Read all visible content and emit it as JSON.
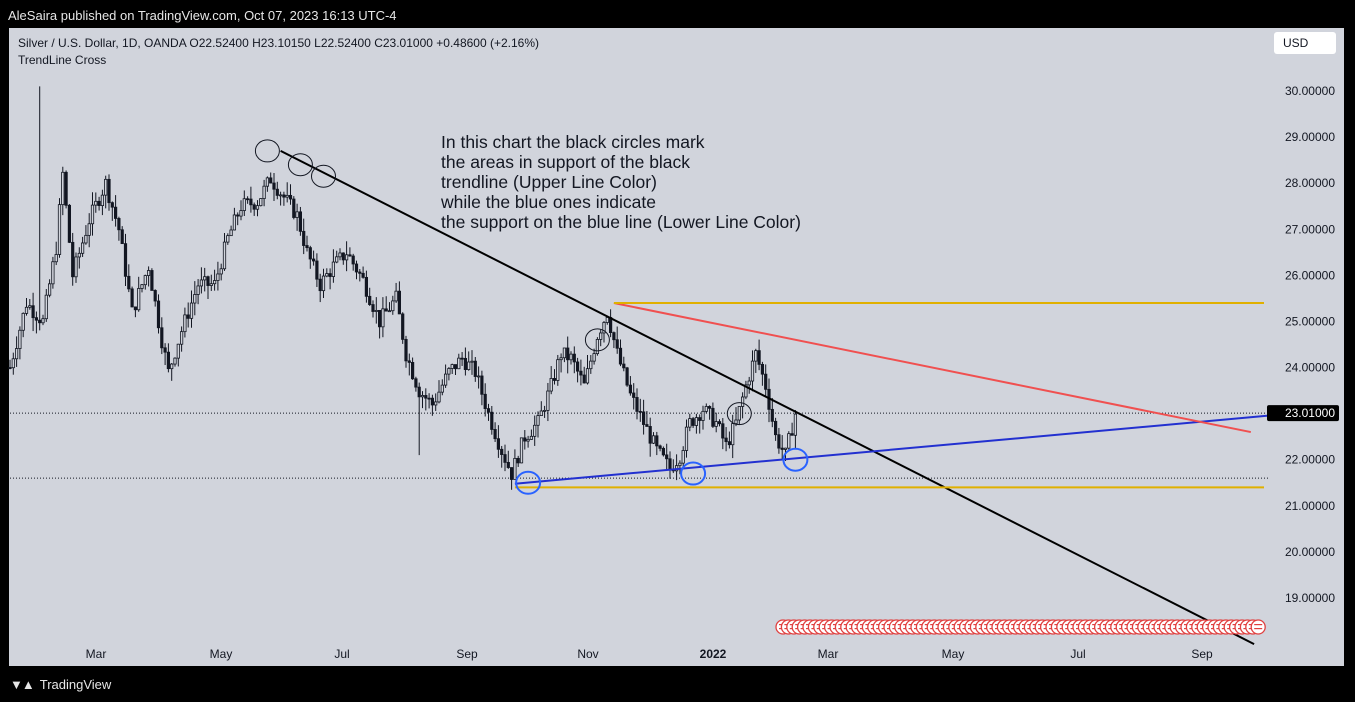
{
  "header": {
    "published_by": "AleSaira published on TradingView.com, Oct 07, 2023 16:13 UTC-4"
  },
  "legend": {
    "symbol_line": "Silver / U.S. Dollar, 1D, OANDA  O22.52400  H23.10150  L22.52400  C23.01000  +0.48600 (+2.16%)",
    "indicator": "TrendLine Cross"
  },
  "currency_button": "USD",
  "annotation": "In this chart the black circles mark\nthe areas in support of the black\ntrendline (Upper Line Color)\nwhile the blue ones indicate\nthe support on the blue line (Lower Line Color)",
  "footer": {
    "brand": "TradingView",
    "logo": "tradingview-logo"
  },
  "colors": {
    "background": "#d1d4dc",
    "upper_line": "#000000",
    "lower_line": "#2230d0",
    "level_line": "#e0b000",
    "red_line": "#f05050",
    "price_label": "#000000"
  },
  "chart_data": {
    "type": "candlestick",
    "title": "",
    "y_axis": {
      "labels": [
        "30.00000",
        "29.00000",
        "28.00000",
        "27.00000",
        "26.00000",
        "25.00000",
        "24.00000",
        "22.00000",
        "21.00000",
        "20.00000",
        "19.00000"
      ],
      "ylim": [
        18.2,
        30.6
      ]
    },
    "x_axis": {
      "labels": [
        "Mar",
        "May",
        "Jul",
        "Sep",
        "Nov",
        "2022",
        "Mar",
        "May",
        "Jul",
        "Sep"
      ]
    },
    "last_price": "23.01000",
    "horizontal_lines": [
      23.01,
      21.6
    ],
    "swing_path": [
      {
        "t": 0,
        "p": 24.0
      },
      {
        "t": 5,
        "p": 25.4
      },
      {
        "t": 10,
        "p": 25.0
      },
      {
        "t": 14,
        "p": 26.6
      },
      {
        "t": 16,
        "p": 28.2
      },
      {
        "t": 19,
        "p": 26.0
      },
      {
        "t": 24,
        "p": 27.2
      },
      {
        "t": 29,
        "p": 28.0
      },
      {
        "t": 33,
        "p": 27.0
      },
      {
        "t": 37,
        "p": 25.2
      },
      {
        "t": 42,
        "p": 26.2
      },
      {
        "t": 46,
        "p": 24.6
      },
      {
        "t": 48,
        "p": 23.9
      },
      {
        "t": 52,
        "p": 24.8
      },
      {
        "t": 57,
        "p": 25.8
      },
      {
        "t": 62,
        "p": 25.8
      },
      {
        "t": 66,
        "p": 26.8
      },
      {
        "t": 70,
        "p": 27.5
      },
      {
        "t": 75,
        "p": 27.6
      },
      {
        "t": 79,
        "p": 28.1
      },
      {
        "t": 83,
        "p": 27.7
      },
      {
        "t": 87,
        "p": 27.3
      },
      {
        "t": 90,
        "p": 26.5
      },
      {
        "t": 94,
        "p": 25.8
      },
      {
        "t": 98,
        "p": 26.2
      },
      {
        "t": 102,
        "p": 26.5
      },
      {
        "t": 107,
        "p": 25.9
      },
      {
        "t": 112,
        "p": 25.0
      },
      {
        "t": 117,
        "p": 25.5
      },
      {
        "t": 120,
        "p": 24.3
      },
      {
        "t": 124,
        "p": 23.5
      },
      {
        "t": 128,
        "p": 23.2
      },
      {
        "t": 133,
        "p": 23.9
      },
      {
        "t": 137,
        "p": 24.2
      },
      {
        "t": 141,
        "p": 23.9
      },
      {
        "t": 145,
        "p": 23.0
      },
      {
        "t": 149,
        "p": 22.2
      },
      {
        "t": 152,
        "p": 21.7
      },
      {
        "t": 156,
        "p": 22.5
      },
      {
        "t": 160,
        "p": 22.8
      },
      {
        "t": 164,
        "p": 23.6
      },
      {
        "t": 167,
        "p": 24.3
      },
      {
        "t": 170,
        "p": 24.2
      },
      {
        "t": 174,
        "p": 23.6
      },
      {
        "t": 178,
        "p": 24.7
      },
      {
        "t": 181,
        "p": 25.2
      },
      {
        "t": 184,
        "p": 24.3
      },
      {
        "t": 188,
        "p": 23.4
      },
      {
        "t": 192,
        "p": 22.8
      },
      {
        "t": 196,
        "p": 22.2
      },
      {
        "t": 200,
        "p": 21.8
      },
      {
        "t": 203,
        "p": 22.1
      },
      {
        "t": 206,
        "p": 22.8
      },
      {
        "t": 210,
        "p": 23.1
      },
      {
        "t": 214,
        "p": 22.8
      },
      {
        "t": 217,
        "p": 22.3
      },
      {
        "t": 220,
        "p": 22.8
      },
      {
        "t": 223,
        "p": 23.6
      },
      {
        "t": 226,
        "p": 24.3
      },
      {
        "t": 229,
        "p": 23.6
      },
      {
        "t": 232,
        "p": 22.5
      },
      {
        "t": 235,
        "p": 22.1
      },
      {
        "t": 238,
        "p": 23.0
      }
    ],
    "trendlines": [
      {
        "name": "upper",
        "color": "#000000",
        "from": {
          "t": 82,
          "p": 28.7
        },
        "to": {
          "t": 377,
          "p": 18.0
        }
      },
      {
        "name": "lower",
        "color": "#2230d0",
        "from": {
          "t": 153,
          "p": 21.48
        },
        "to": {
          "t": 385,
          "p": 22.98
        }
      },
      {
        "name": "red",
        "color": "#f05050",
        "from": {
          "t": 183,
          "p": 25.4
        },
        "to": {
          "t": 376,
          "p": 22.6
        }
      },
      {
        "name": "level-top",
        "color": "#e0b000",
        "from": {
          "t": 183,
          "p": 25.4
        },
        "to": {
          "t": 380,
          "p": 25.4
        }
      },
      {
        "name": "level-bottom",
        "color": "#e0b000",
        "from": {
          "t": 153,
          "p": 21.4
        },
        "to": {
          "t": 380,
          "p": 21.4
        }
      }
    ],
    "black_circles": [
      {
        "t": 78,
        "p": 28.7
      },
      {
        "t": 88,
        "p": 28.4
      },
      {
        "t": 95,
        "p": 28.15
      },
      {
        "t": 178,
        "p": 24.6
      },
      {
        "t": 221,
        "p": 23.0
      }
    ],
    "blue_circles": [
      {
        "t": 157,
        "p": 21.5
      },
      {
        "t": 207,
        "p": 21.7
      },
      {
        "t": 238,
        "p": 22.0
      }
    ],
    "event_markers": {
      "icon": "us-flag-event-icon",
      "count": 90
    }
  }
}
